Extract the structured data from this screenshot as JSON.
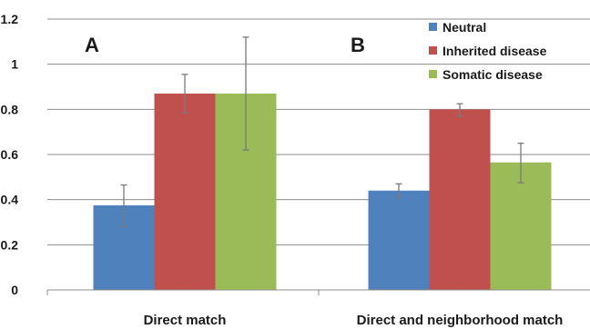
{
  "chart_data": {
    "type": "bar",
    "categories": [
      "Direct match",
      "Direct and neighborhood match"
    ],
    "panel_labels": [
      "A",
      "B"
    ],
    "series": [
      {
        "name": "Neutral",
        "color": "#4f81bd",
        "values": [
          0.375,
          0.44
        ],
        "error_low": [
          0.28,
          0.41
        ],
        "error_high": [
          0.465,
          0.47
        ]
      },
      {
        "name": "Inherited disease",
        "color": "#c0504d",
        "values": [
          0.87,
          0.8
        ],
        "error_low": [
          0.785,
          0.77
        ],
        "error_high": [
          0.955,
          0.825
        ]
      },
      {
        "name": "Somatic disease",
        "color": "#9bbb59",
        "values": [
          0.87,
          0.565
        ],
        "error_low": [
          0.62,
          0.475
        ],
        "error_high": [
          1.12,
          0.65
        ]
      }
    ],
    "yticks": [
      "0",
      "0.2",
      "0.4",
      "0.6",
      "0.8",
      "1",
      "1.2"
    ],
    "ylim": [
      0,
      1.2
    ],
    "grid": true,
    "legend_position": "top-right"
  }
}
